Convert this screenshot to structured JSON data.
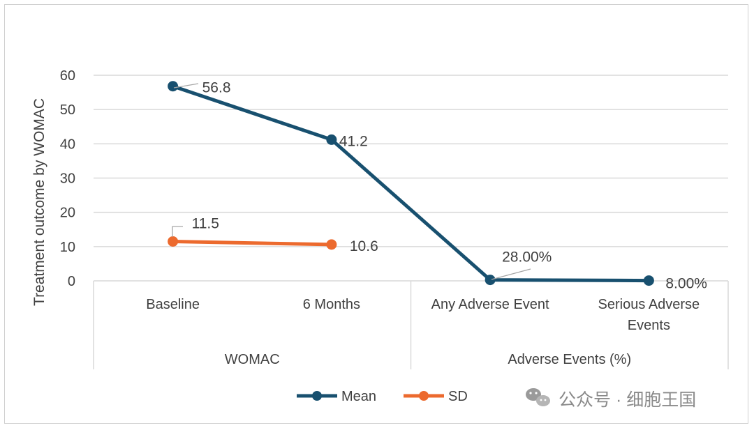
{
  "chart_data": {
    "type": "line",
    "ylabel": "Treatment outcome by WOMAC",
    "ylim": [
      0,
      60
    ],
    "yticks": [
      0,
      10,
      20,
      30,
      40,
      50,
      60
    ],
    "grid": true,
    "legend_position": "bottom",
    "categories": [
      "Baseline",
      "6 Months",
      "Any Adverse Event",
      "Serious Adverse Events"
    ],
    "category_label_lines": [
      [
        "Baseline"
      ],
      [
        "6 Months"
      ],
      [
        "Any Adverse Event"
      ],
      [
        "Serious Adverse",
        "Events"
      ]
    ],
    "groups": [
      {
        "label": "WOMAC",
        "span": [
          0,
          1
        ]
      },
      {
        "label": "Adverse Events (%)",
        "span": [
          2,
          3
        ]
      }
    ],
    "series": [
      {
        "name": "Mean",
        "color": "#18506f",
        "values": [
          56.8,
          41.2,
          0.28,
          0.08
        ],
        "labels": [
          "56.8",
          "41.2",
          "28.00%",
          "8.00%"
        ]
      },
      {
        "name": "SD",
        "color": "#ec6a2e",
        "values": [
          11.5,
          10.6,
          null,
          null
        ],
        "labels": [
          "11.5",
          "10.6",
          "",
          ""
        ]
      }
    ]
  },
  "watermark": {
    "text": "公众号 · 细胞王国",
    "icon": "wechat-icon"
  }
}
